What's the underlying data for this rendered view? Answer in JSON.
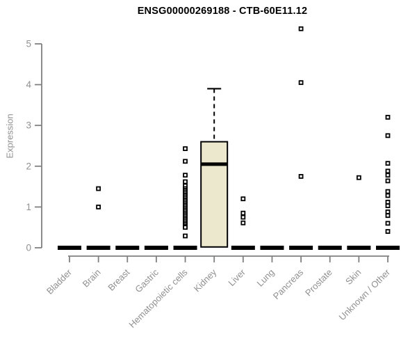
{
  "chart_data": {
    "type": "boxplot",
    "title": "ENSG00000269188 - CTB-60E11.12",
    "ylabel": "Expression",
    "xlabel": "",
    "ylim": [
      0,
      5.5
    ],
    "yticks": [
      0,
      1,
      2,
      3,
      4,
      5
    ],
    "grid": false,
    "legend": false,
    "categories": [
      "Bladder",
      "Brain",
      "Breast",
      "Gastric",
      "Hematopoietic cells",
      "Kidney",
      "Liver",
      "Lung",
      "Pancreas",
      "Prostate",
      "Skin",
      "Unknown / Other"
    ],
    "boxes": [
      {
        "category": "Bladder",
        "q1": 0,
        "median": 0,
        "q3": 0,
        "whisker_low": 0,
        "whisker_high": 0,
        "outliers": []
      },
      {
        "category": "Brain",
        "q1": 0,
        "median": 0,
        "q3": 0,
        "whisker_low": 0,
        "whisker_high": 0,
        "outliers": [
          1.45,
          1.0
        ]
      },
      {
        "category": "Breast",
        "q1": 0,
        "median": 0,
        "q3": 0,
        "whisker_low": 0,
        "whisker_high": 0,
        "outliers": []
      },
      {
        "category": "Gastric",
        "q1": 0,
        "median": 0,
        "q3": 0,
        "whisker_low": 0,
        "whisker_high": 0,
        "outliers": []
      },
      {
        "category": "Hematopoietic cells",
        "q1": 0,
        "median": 0,
        "q3": 0,
        "whisker_low": 0,
        "whisker_high": 0,
        "outliers": [
          2.43,
          2.12,
          1.78,
          1.62,
          1.52,
          1.45,
          1.41,
          1.37,
          1.33,
          1.29,
          1.25,
          1.21,
          1.17,
          1.13,
          1.09,
          1.05,
          1.01,
          0.97,
          0.93,
          0.89,
          0.85,
          0.81,
          0.77,
          0.73,
          0.69,
          0.65,
          0.61,
          0.57,
          0.53,
          0.5,
          0.29
        ]
      },
      {
        "category": "Kidney",
        "q1": 0.02,
        "median": 2.05,
        "q3": 2.6,
        "whisker_low": 0.02,
        "whisker_high": 3.9,
        "outliers": []
      },
      {
        "category": "Liver",
        "q1": 0,
        "median": 0,
        "q3": 0,
        "whisker_low": 0,
        "whisker_high": 0,
        "outliers": [
          1.2,
          0.85,
          0.75,
          0.61
        ]
      },
      {
        "category": "Lung",
        "q1": 0,
        "median": 0,
        "q3": 0,
        "whisker_low": 0,
        "whisker_high": 0,
        "outliers": []
      },
      {
        "category": "Pancreas",
        "q1": 0,
        "median": 0,
        "q3": 0,
        "whisker_low": 0,
        "whisker_high": 0,
        "outliers": [
          5.37,
          4.05,
          1.75
        ]
      },
      {
        "category": "Prostate",
        "q1": 0,
        "median": 0,
        "q3": 0,
        "whisker_low": 0,
        "whisker_high": 0,
        "outliers": []
      },
      {
        "category": "Skin",
        "q1": 0,
        "median": 0,
        "q3": 0,
        "whisker_low": 0,
        "whisker_high": 0,
        "outliers": [
          1.72
        ]
      },
      {
        "category": "Unknown / Other",
        "q1": 0,
        "median": 0,
        "q3": 0,
        "whisker_low": 0,
        "whisker_high": 0,
        "outliers": [
          3.2,
          2.75,
          2.07,
          1.88,
          1.78,
          1.64,
          1.38,
          1.28,
          1.12,
          1.03,
          0.88,
          0.79,
          0.6,
          0.4
        ]
      }
    ]
  },
  "colors": {
    "background": "#ffffff",
    "title": "#000000",
    "axis": "#808080",
    "tick_label": "#909090",
    "axis_label": "#909090",
    "box_fill": "#ece8cd",
    "box_stroke": "#000000",
    "median": "#000000",
    "collapsed_bar": "#000000",
    "whisker": "#000000",
    "outlier_stroke": "#000000",
    "outlier_fill": "#ffffff"
  }
}
